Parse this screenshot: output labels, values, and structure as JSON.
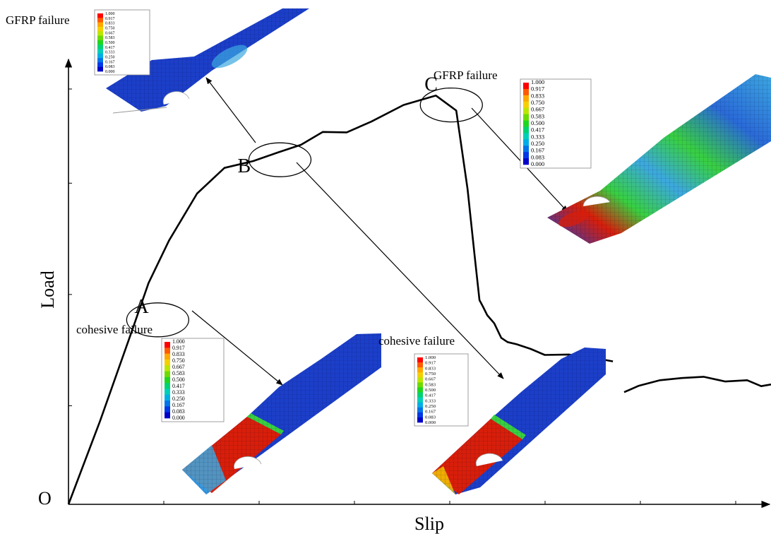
{
  "chart_data": {
    "type": "line",
    "xlabel": "Slip",
    "ylabel": "Load",
    "origin_label": "O",
    "grid": false,
    "legend": "none",
    "series": [
      {
        "name": "",
        "x": [
          0.0,
          0.045,
          0.09,
          0.114,
          0.143,
          0.183,
          0.222,
          0.263,
          0.298,
          0.331,
          0.362,
          0.396,
          0.431,
          0.477,
          0.523,
          0.552,
          0.568,
          0.578,
          0.585,
          0.59,
          0.596,
          0.606,
          0.616,
          0.625,
          0.638,
          0.658,
          0.678,
          0.712,
          0.741,
          0.775
        ],
        "y": [
          0.0,
          0.195,
          0.404,
          0.517,
          0.616,
          0.726,
          0.786,
          0.802,
          0.822,
          0.84,
          0.87,
          0.869,
          0.894,
          0.933,
          0.955,
          0.92,
          0.737,
          0.583,
          0.477,
          0.462,
          0.442,
          0.423,
          0.389,
          0.379,
          0.374,
          0.363,
          0.349,
          0.35,
          0.344,
          0.334
        ]
      },
      {
        "name": "",
        "x": [
          0.791,
          0.812,
          0.842,
          0.873,
          0.904,
          0.935,
          0.966,
          0.986,
          1.0
        ],
        "y": [
          0.262,
          0.277,
          0.29,
          0.295,
          0.298,
          0.287,
          0.29,
          0.276,
          0.28
        ]
      }
    ],
    "point_labels": [
      {
        "label": "A",
        "x": 0.127,
        "y": 0.431
      },
      {
        "label": "B",
        "x": 0.301,
        "y": 0.805
      },
      {
        "label": "C",
        "x": 0.545,
        "y": 0.933
      }
    ],
    "annotations": [
      "GFRP failure",
      "GFRP failure",
      "cohesive failure",
      "cohesive failure"
    ]
  },
  "contour_legend": {
    "values": [
      "1.000",
      "0.917",
      "0.833",
      "0.750",
      "0.667",
      "0.583",
      "0.500",
      "0.417",
      "0.333",
      "0.250",
      "0.167",
      "0.083",
      "0.000"
    ],
    "colors": [
      "#ff0000",
      "#ff5a00",
      "#ffa800",
      "#f5d000",
      "#bce600",
      "#6ddb00",
      "#1fd61f",
      "#00d270",
      "#00cfb8",
      "#00aee6",
      "#0074e8",
      "#0037e6",
      "#0000c8"
    ]
  },
  "colors": {
    "mesh_blue": "#1c3fc9",
    "mesh_red": "#d81e0a",
    "mesh_green": "#38d040",
    "mesh_cyan": "#3ca8e0"
  }
}
